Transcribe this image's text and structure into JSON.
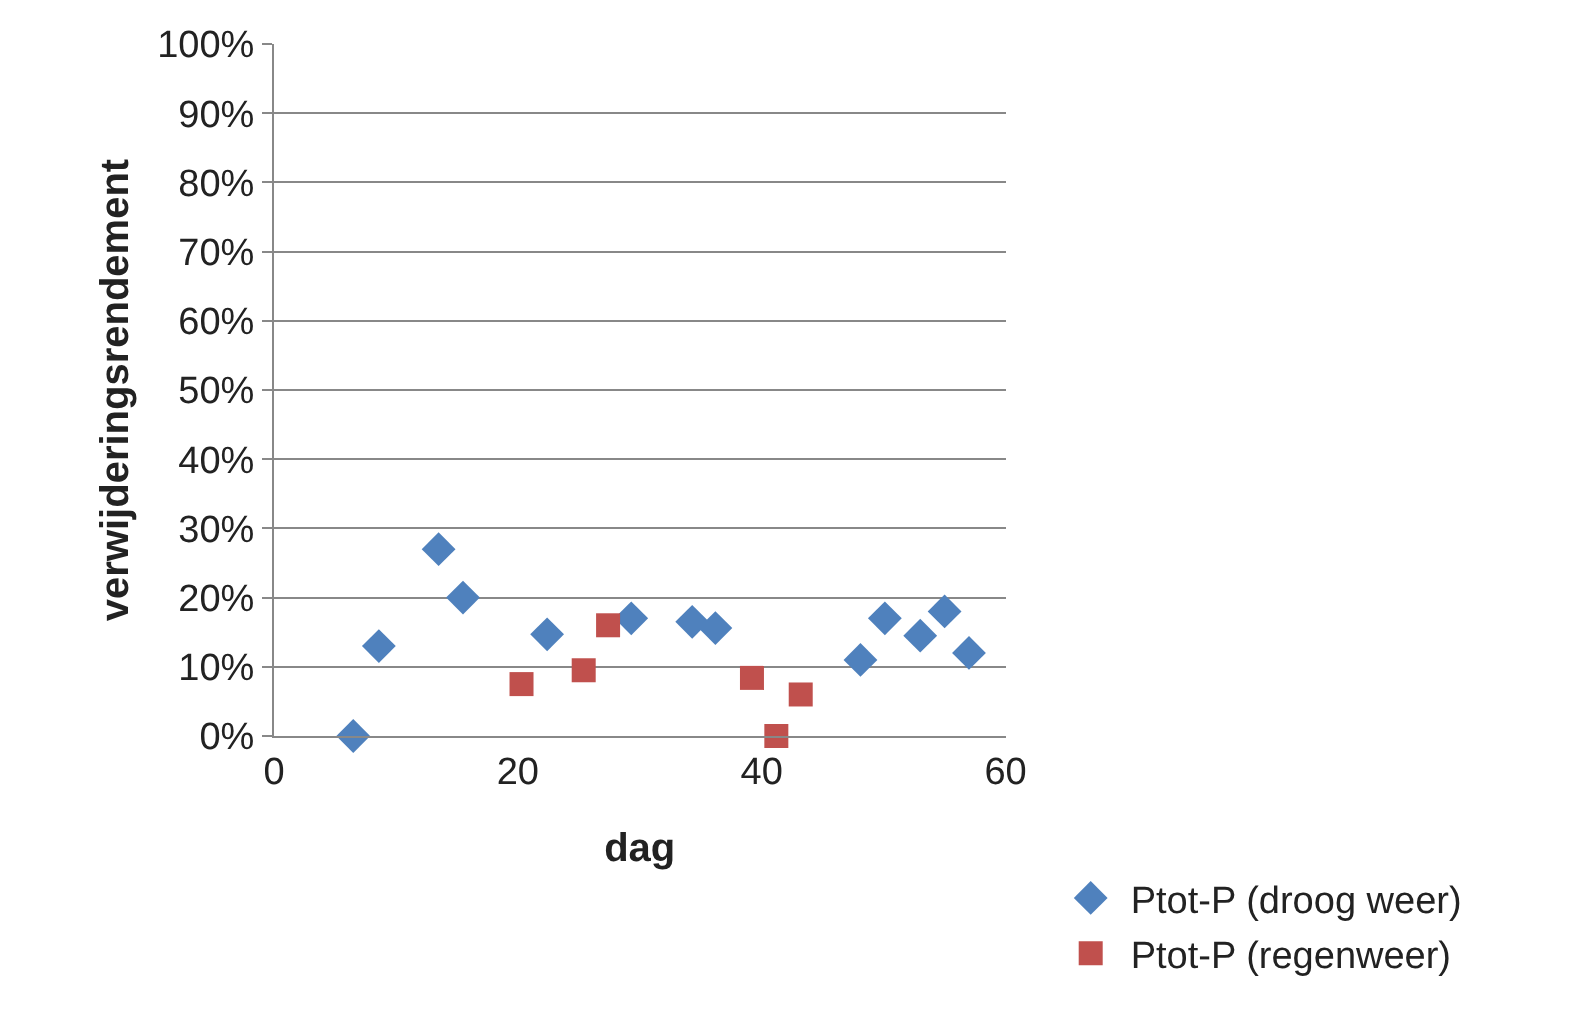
{
  "chart_data": {
    "type": "scatter",
    "xlabel": "dag",
    "ylabel": "verwijderingsrendement",
    "xlim": [
      0,
      60
    ],
    "xticks": [
      0,
      20,
      40,
      60
    ],
    "ylim": [
      0,
      1
    ],
    "yticks": [
      {
        "value": 0,
        "label": "0%"
      },
      {
        "value": 0.1,
        "label": "10%"
      },
      {
        "value": 0.2,
        "label": "20%"
      },
      {
        "value": 0.3,
        "label": "30%"
      },
      {
        "value": 0.4,
        "label": "40%"
      },
      {
        "value": 0.5,
        "label": "50%"
      },
      {
        "value": 0.6,
        "label": "60%"
      },
      {
        "value": 0.7,
        "label": "70%"
      },
      {
        "value": 0.8,
        "label": "80%"
      },
      {
        "value": 0.9,
        "label": "90%"
      },
      {
        "value": 1,
        "label": "100%"
      }
    ],
    "grid": "y",
    "legend": "bottom right",
    "series": [
      {
        "name": "Ptot-P (droog weer)",
        "color": "#4f81bd",
        "marker": "diamond",
        "x": [
          6.5,
          8.6,
          13.5,
          15.5,
          22.4,
          29.3,
          34.3,
          36.2,
          48.1,
          50.1,
          53,
          55,
          57
        ],
        "values": [
          0,
          0.13,
          0.27,
          0.2,
          0.147,
          0.17,
          0.165,
          0.156,
          0.11,
          0.17,
          0.145,
          0.18,
          0.12
        ]
      },
      {
        "name": "Ptot-P (regenweer)",
        "color": "#c0504d",
        "marker": "square",
        "x": [
          20.3,
          25.4,
          27.4,
          39.2,
          41.2,
          43.2
        ],
        "values": [
          0.075,
          0.095,
          0.16,
          0.084,
          0,
          0.06
        ]
      }
    ]
  }
}
